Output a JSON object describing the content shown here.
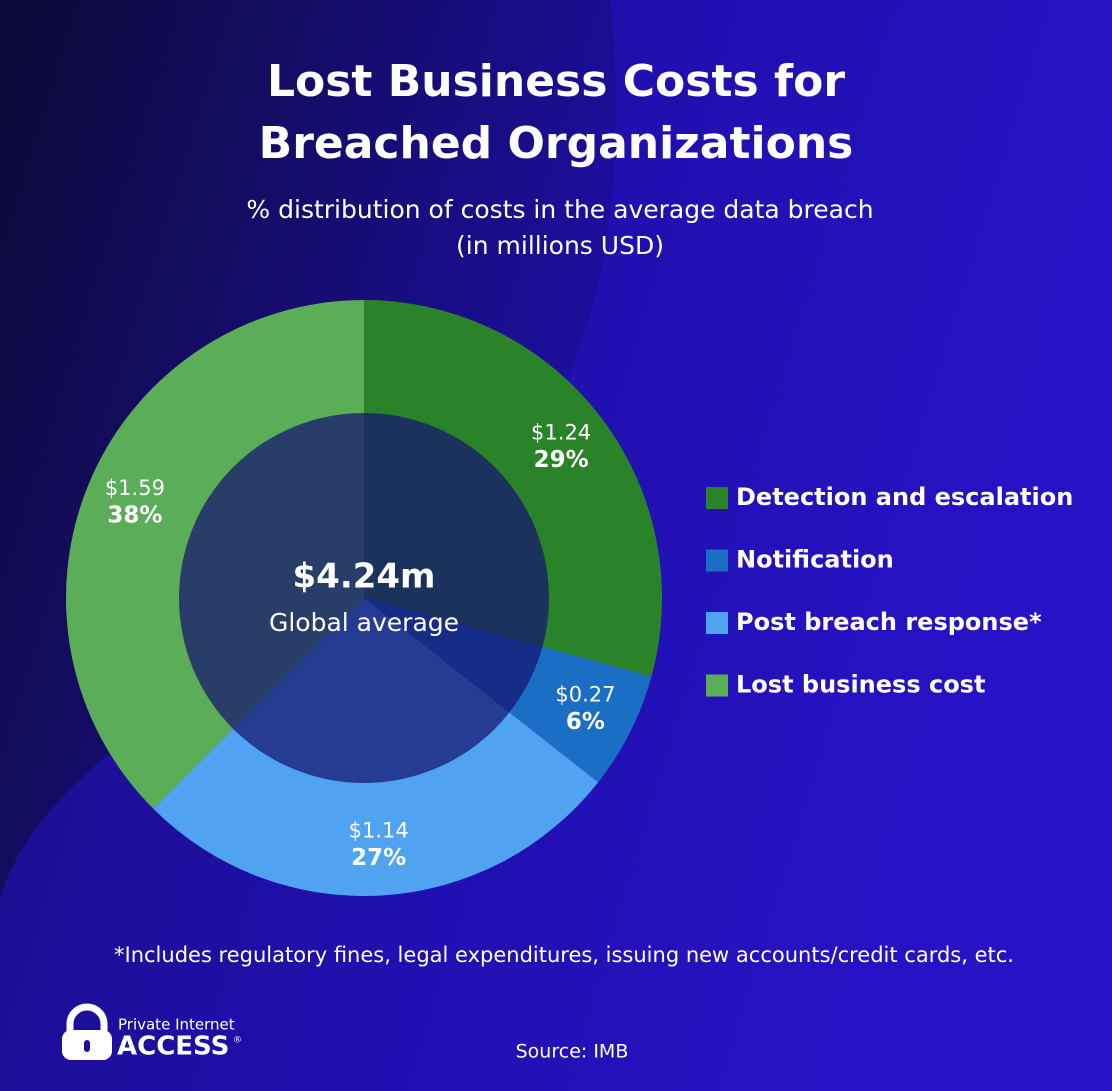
{
  "chart_data": {
    "type": "donut",
    "title": [
      "Lost Business Costs for",
      "Breached Organizations"
    ],
    "subtitle": [
      "% distribution of costs in the average data breach",
      "(in millions USD)"
    ],
    "categories": [
      "Detection and escalation",
      "Notification",
      "Post breach response*",
      "Lost business cost"
    ],
    "colors": [
      "#2a8229",
      "#1a6fc4",
      "#4fa3f1",
      "#5bae57"
    ],
    "values": [
      1.24,
      0.27,
      1.14,
      1.59
    ],
    "value_labels": [
      "$1.24",
      "$0.27",
      "$1.14",
      "$1.59"
    ],
    "percents": [
      29,
      6,
      27,
      38
    ],
    "percent_labels": [
      "29%",
      "6%",
      "27%",
      "38%"
    ],
    "center_title": "$4.24m",
    "center_subtitle": "Global average",
    "legend": "right"
  },
  "footnote": "*Includes regulatory fines, legal expenditures, issuing new accounts/credit cards, etc.",
  "source": "Source: IMB",
  "brand": {
    "line1": "Private Internet",
    "line2": "ACCESS",
    "mark": "®"
  }
}
